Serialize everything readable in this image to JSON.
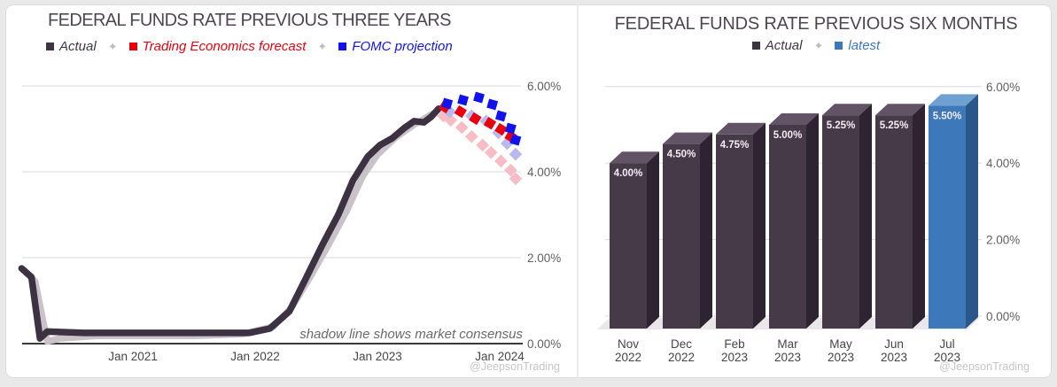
{
  "page": {
    "watermark": "@JeepsonTrading",
    "legend_separator": "✦",
    "background_color": "#e9e9ea",
    "panel_color": "#ffffff"
  },
  "chart_data": [
    {
      "type": "line",
      "title": "FEDERAL FUNDS RATE PREVIOUS THREE YEARS",
      "annotation": "shadow line shows market consensus",
      "legend": [
        {
          "label": "Actual",
          "color": "#3f3442"
        },
        {
          "label": "Trading Economics forecast",
          "color": "#ea000d"
        },
        {
          "label": "FOMC projection",
          "color": "#1212f0"
        }
      ],
      "x_axis": {
        "ticks": [
          {
            "x": 2021,
            "label": "Jan 2021"
          },
          {
            "x": 2022,
            "label": "Jan 2022"
          },
          {
            "x": 2023,
            "label": "Jan 2023"
          },
          {
            "x": 2024,
            "label": "Jan 2024"
          }
        ],
        "range": [
          2020.05,
          2024.2
        ]
      },
      "y_axis": {
        "ticks": [
          {
            "value": 6,
            "label": "6.00%"
          },
          {
            "value": 4,
            "label": "4.00%"
          },
          {
            "value": 2,
            "label": "2.00%"
          },
          {
            "value": 0,
            "label": "0.00%"
          }
        ],
        "range": [
          0,
          6.2
        ],
        "grid": true
      },
      "series": [
        {
          "name": "Market consensus (shadow line)",
          "style": "line",
          "color": "#c9c3c9",
          "points": [
            [
              2020.09,
              1.75
            ],
            [
              2020.2,
              1.45
            ],
            [
              2020.3,
              0.05
            ],
            [
              2020.4,
              0.12
            ],
            [
              2020.7,
              0.18
            ],
            [
              2021.0,
              0.18
            ],
            [
              2021.5,
              0.18
            ],
            [
              2021.9,
              0.22
            ],
            [
              2022.15,
              0.4
            ],
            [
              2022.3,
              0.85
            ],
            [
              2022.45,
              1.55
            ],
            [
              2022.6,
              2.3
            ],
            [
              2022.75,
              3.1
            ],
            [
              2022.88,
              3.9
            ],
            [
              2023.0,
              4.4
            ],
            [
              2023.15,
              4.8
            ],
            [
              2023.3,
              5.1
            ],
            [
              2023.45,
              5.35
            ]
          ]
        },
        {
          "name": "Actual",
          "style": "line",
          "color": "#3d3242",
          "points": [
            [
              2020.09,
              1.75
            ],
            [
              2020.17,
              1.55
            ],
            [
              2020.24,
              0.12
            ],
            [
              2020.3,
              0.28
            ],
            [
              2020.6,
              0.25
            ],
            [
              2021.0,
              0.25
            ],
            [
              2021.5,
              0.25
            ],
            [
              2021.95,
              0.25
            ],
            [
              2022.12,
              0.35
            ],
            [
              2022.28,
              0.75
            ],
            [
              2022.42,
              1.55
            ],
            [
              2022.55,
              2.3
            ],
            [
              2022.68,
              3.0
            ],
            [
              2022.8,
              3.8
            ],
            [
              2022.92,
              4.35
            ],
            [
              2023.02,
              4.62
            ],
            [
              2023.12,
              4.78
            ],
            [
              2023.22,
              5.02
            ],
            [
              2023.3,
              5.18
            ],
            [
              2023.38,
              5.15
            ],
            [
              2023.44,
              5.28
            ],
            [
              2023.5,
              5.47
            ]
          ]
        },
        {
          "name": "Trading Economics forecast (market consensus shadow)",
          "style": "markers",
          "color": "#f6bdc5",
          "points": [
            [
              2023.54,
              5.3
            ],
            [
              2023.6,
              5.2
            ],
            [
              2023.69,
              5.03
            ],
            [
              2023.77,
              4.82
            ],
            [
              2023.86,
              4.62
            ],
            [
              2023.93,
              4.45
            ],
            [
              2024.01,
              4.25
            ],
            [
              2024.09,
              4.04
            ],
            [
              2024.13,
              3.84
            ]
          ]
        },
        {
          "name": "FOMC projection (market consensus shadow)",
          "style": "markers",
          "color": "#b9b9ee",
          "points": [
            [
              2023.59,
              5.4
            ],
            [
              2023.77,
              5.3
            ],
            [
              2023.89,
              5.18
            ],
            [
              2023.99,
              4.91
            ],
            [
              2024.06,
              4.66
            ],
            [
              2024.13,
              4.41
            ]
          ]
        },
        {
          "name": "Trading Economics forecast",
          "style": "markers",
          "color": "#ea000d",
          "points": [
            [
              2023.55,
              5.51
            ],
            [
              2023.68,
              5.4
            ],
            [
              2023.8,
              5.24
            ],
            [
              2023.92,
              5.13
            ],
            [
              2024.01,
              4.99
            ],
            [
              2024.09,
              4.82
            ]
          ]
        },
        {
          "name": "FOMC projection",
          "style": "markers",
          "color": "#1212f0",
          "points": [
            [
              2023.57,
              5.59
            ],
            [
              2023.7,
              5.67
            ],
            [
              2023.83,
              5.73
            ],
            [
              2023.94,
              5.57
            ],
            [
              2024.01,
              5.3
            ],
            [
              2024.09,
              5.01
            ],
            [
              2024.13,
              4.74
            ]
          ]
        }
      ]
    },
    {
      "type": "bar",
      "title": "FEDERAL FUNDS RATE PREVIOUS SIX MONTHS",
      "legend": [
        {
          "label": "Actual",
          "color": "#3f3442"
        },
        {
          "label": "latest",
          "color": "#3d78bb"
        }
      ],
      "categories": [
        {
          "month": "Nov",
          "year": "2022"
        },
        {
          "month": "Dec",
          "year": "2022"
        },
        {
          "month": "Feb",
          "year": "2023"
        },
        {
          "month": "Mar",
          "year": "2023"
        },
        {
          "month": "May",
          "year": "2023"
        },
        {
          "month": "Jun",
          "year": "2023"
        },
        {
          "month": "Jul",
          "year": "2023"
        }
      ],
      "values": [
        4.0,
        4.5,
        4.75,
        5.0,
        5.25,
        5.25,
        5.5
      ],
      "value_labels": [
        "4.00%",
        "4.50%",
        "4.75%",
        "5.00%",
        "5.25%",
        "5.25%",
        "5.50%"
      ],
      "latest_index": 6,
      "colors": {
        "actual": {
          "front": "#463a48",
          "top": "#635366",
          "side": "#2e2431"
        },
        "latest": {
          "front": "#3d78bb",
          "top": "#6fa0d2",
          "side": "#295789"
        }
      },
      "y_axis": {
        "ticks": [
          {
            "value": 6,
            "label": "6.00%"
          },
          {
            "value": 4,
            "label": "4.00%"
          },
          {
            "value": 2,
            "label": "2.00%"
          },
          {
            "value": 0,
            "label": "0.00%"
          }
        ],
        "range": [
          0,
          6.2
        ],
        "grid": true
      }
    }
  ]
}
